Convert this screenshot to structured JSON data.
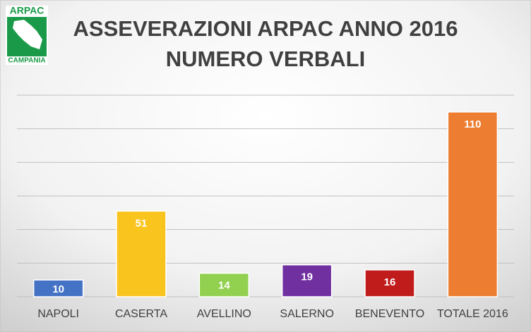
{
  "logo": {
    "top": "ARPAC",
    "bottom": "CAMPANIA"
  },
  "chart_data": {
    "type": "bar",
    "title": "ASSEVERAZIONI ARPAC ANNO 2016",
    "subtitle": "NUMERO VERBALI",
    "categories": [
      "NAPOLI",
      "CASERTA",
      "AVELLINO",
      "SALERNO",
      "BENEVENTO",
      "TOTALE 2016"
    ],
    "values": [
      10,
      51,
      14,
      19,
      16,
      110
    ],
    "colors": [
      "#4472c4",
      "#fac41e",
      "#92d050",
      "#7030a0",
      "#c01c1c",
      "#ed7d31"
    ],
    "ylim": [
      0,
      120
    ],
    "yticks": [
      0,
      20,
      40,
      60,
      80,
      100,
      120
    ],
    "grid": true
  }
}
